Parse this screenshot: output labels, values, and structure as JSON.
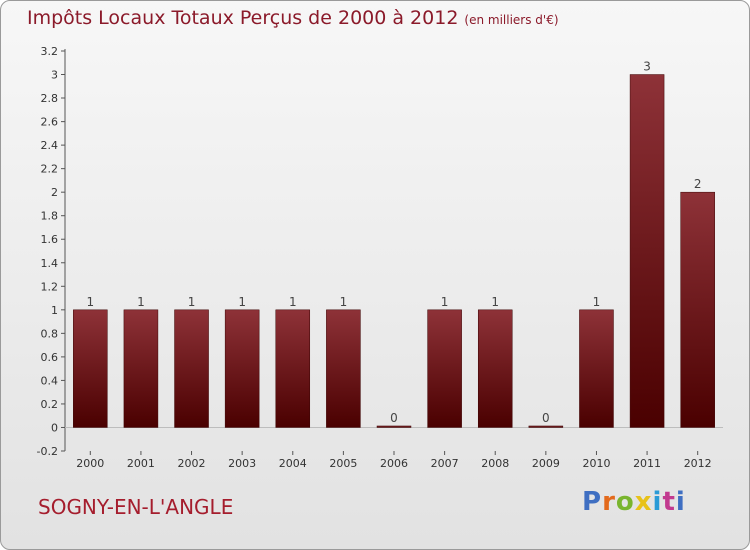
{
  "title": {
    "main": "Impôts Locaux Totaux Perçus de 2000 à 2012",
    "unit": "(en milliers d'€)"
  },
  "commune": "SOGNY-EN-L'ANGLE",
  "logo": {
    "text": "Proxiti",
    "letters": [
      "P",
      "r",
      "o",
      "x",
      "i",
      "t",
      "i"
    ]
  },
  "colors": {
    "bar_top": "#8e3238",
    "bar_bottom": "#4a0000",
    "title": "#8b1a2a"
  },
  "chart_data": {
    "type": "bar",
    "title": "Impôts Locaux Totaux Perçus de 2000 à 2012",
    "xlabel": "",
    "ylabel": "en milliers d'€",
    "categories": [
      "2000",
      "2001",
      "2002",
      "2003",
      "2004",
      "2005",
      "2006",
      "2007",
      "2008",
      "2009",
      "2010",
      "2011",
      "2012"
    ],
    "values": [
      1,
      1,
      1,
      1,
      1,
      1,
      0,
      1,
      1,
      0,
      1,
      3,
      2
    ],
    "labels": [
      "1",
      "1",
      "1",
      "1",
      "1",
      "1",
      "0",
      "1",
      "1",
      "0",
      "1",
      "3",
      "2"
    ],
    "ylim": [
      -0.2,
      3.2
    ],
    "yticks": [
      -0.2,
      0,
      0.2,
      0.4,
      0.6,
      0.8,
      1,
      1.2,
      1.4,
      1.6,
      1.8,
      2,
      2.2,
      2.4,
      2.6,
      2.8,
      3,
      3.2
    ],
    "ytick_labels": [
      "-0.2",
      "0",
      "0.2",
      "0.4",
      "0.6",
      "0.8",
      "1",
      "1.2",
      "1.4",
      "1.6",
      "1.8",
      "2",
      "2.2",
      "2.4",
      "2.6",
      "2.8",
      "3",
      "3.2"
    ],
    "grid": false
  }
}
